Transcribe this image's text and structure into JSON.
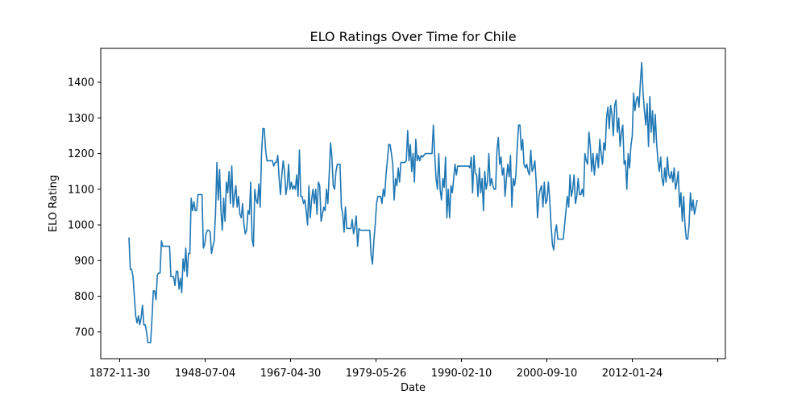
{
  "chart_data": {
    "type": "line",
    "title": "ELO Ratings Over Time for Chile",
    "xlabel": "Date",
    "ylabel": "ELO Rating",
    "x_tick_labels": [
      "1872-11-30",
      "1948-07-04",
      "1967-04-30",
      "1979-05-26",
      "1990-02-10",
      "2000-09-10",
      "2012-01-24",
      ""
    ],
    "y_ticks": [
      700,
      800,
      900,
      1000,
      1100,
      1200,
      1300,
      1400
    ],
    "ylim": [
      625,
      1495
    ],
    "grid": false,
    "colors": {
      "line": "#1f77b4"
    },
    "series": [
      {
        "values": [
          965,
          875,
          875,
          855,
          800,
          745,
          725,
          745,
          720,
          740,
          775,
          720,
          720,
          700,
          670,
          670,
          670,
          735,
          815,
          815,
          790,
          860,
          865,
          865,
          955,
          940,
          940,
          940,
          940,
          940,
          940,
          855,
          855,
          855,
          830,
          870,
          870,
          820,
          850,
          810,
          905,
          870,
          935,
          855,
          920,
          920,
          1075,
          1040,
          1065,
          1040,
          1040,
          1085,
          1085,
          1085,
          1085,
          935,
          945,
          975,
          985,
          985,
          980,
          920,
          940,
          955,
          1035,
          1175,
          1070,
          1155,
          1040,
          985,
          1075,
          1010,
          1120,
          1090,
          1150,
          1060,
          1165,
          1050,
          1080,
          1110,
          1050,
          1080,
          1030,
          1020,
          1060,
          1000,
          975,
          985,
          1040,
          1030,
          1120,
          960,
          940,
          1100,
          1070,
          1060,
          1115,
          1050,
          1200,
          1270,
          1270,
          1210,
          1180,
          1180,
          1180,
          1180,
          1180,
          1165,
          1175,
          1175,
          1195,
          1130,
          1085,
          1140,
          1180,
          1150,
          1085,
          1110,
          1170,
          1100,
          1120,
          1100,
          1110,
          1100,
          1140,
          1080,
          1210,
          1080,
          1080,
          1060,
          1070,
          1040,
          1000,
          1110,
          1020,
          1070,
          1100,
          1060,
          1100,
          1030,
          1120,
          1110,
          1010,
          1030,
          1050,
          1040,
          1100,
          1060,
          1140,
          1230,
          1190,
          1110,
          1100,
          1150,
          1170,
          1170,
          1170,
          1050,
          1030,
          980,
          1050,
          990,
          990,
          990,
          990,
          1015,
          975,
          995,
          1025,
          940,
          990,
          985,
          985,
          985,
          985,
          985,
          985,
          985,
          985,
          915,
          890,
          955,
          1000,
          1060,
          1080,
          1080,
          1080,
          1060,
          1100,
          1080,
          1140,
          1180,
          1225,
          1225,
          1200,
          1170,
          1070,
          1130,
          1110,
          1160,
          1120,
          1175,
          1175,
          1175,
          1175,
          1180,
          1265,
          1180,
          1225,
          1150,
          1200,
          1120,
          1240,
          1180,
          1195,
          1180,
          1195,
          1190,
          1195,
          1200,
          1200,
          1200,
          1200,
          1200,
          1200,
          1280,
          1195,
          1130,
          1100,
          1200,
          1100,
          1070,
          1130,
          1105,
          1190,
          1020,
          1100,
          1020,
          1110,
          1090,
          1130,
          1170,
          1140,
          1165,
          1165,
          1165,
          1165,
          1165,
          1165,
          1165,
          1165,
          1165,
          1160,
          1190,
          1090,
          1195,
          1145,
          1140,
          1080,
          1160,
          1090,
          1130,
          1040,
          1150,
          1100,
          1120,
          1200,
          1110,
          1130,
          1110,
          1100,
          1100,
          1210,
          1245,
          1170,
          1190,
          1140,
          1160,
          1080,
          1130,
          1170,
          1135,
          1195,
          1050,
          1130,
          1110,
          1140,
          1220,
          1280,
          1280,
          1210,
          1240,
          1170,
          1160,
          1170,
          1150,
          1140,
          1210,
          1150,
          1160,
          1180,
          1120,
          1020,
          1080,
          1100,
          1110,
          1050,
          1120,
          1060,
          1070,
          1120,
          1070,
          1000,
          945,
          930,
          980,
          1000,
          960,
          960,
          960,
          960,
          960,
          1000,
          1040,
          1080,
          1050,
          1140,
          1080,
          1100,
          1140,
          1060,
          1080,
          1130,
          1085,
          1085,
          1100,
          1080,
          1200,
          1180,
          1170,
          1260,
          1220,
          1150,
          1200,
          1140,
          1180,
          1200,
          1160,
          1240,
          1200,
          1170,
          1230,
          1210,
          1300,
          1330,
          1270,
          1335,
          1310,
          1250,
          1335,
          1350,
          1260,
          1300,
          1220,
          1260,
          1280,
          1170,
          1180,
          1100,
          1200,
          1160,
          1220,
          1250,
          1370,
          1320,
          1350,
          1360,
          1330,
          1400,
          1455,
          1370,
          1320,
          1280,
          1340,
          1220,
          1360,
          1260,
          1320,
          1230,
          1310,
          1230,
          1180,
          1150,
          1190,
          1130,
          1110,
          1160,
          1120,
          1190,
          1140,
          1130,
          1150,
          1120,
          1160,
          1100,
          1120,
          1150,
          1050,
          1090,
          1010,
          1080,
          1000,
          960,
          960,
          1000,
          1090,
          1040,
          1070,
          1030,
          1050,
          1070
        ]
      }
    ]
  }
}
